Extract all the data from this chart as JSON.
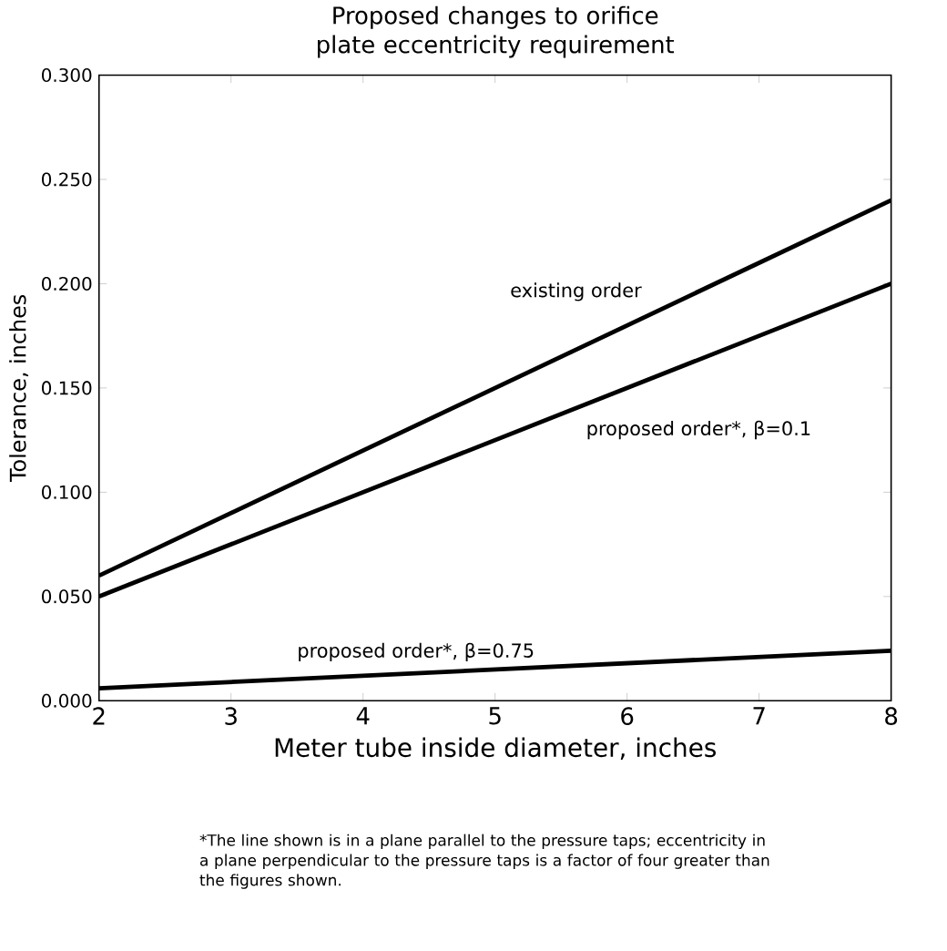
{
  "chart_data": {
    "type": "line",
    "title": "Proposed changes to orifice plate eccentricity requirement",
    "xlabel": "Meter tube inside diameter, inches",
    "ylabel": "Tolerance, inches",
    "x": [
      2,
      8
    ],
    "series": [
      {
        "name": "existing order",
        "color": "#000000",
        "values": [
          0.06,
          0.24
        ]
      },
      {
        "name": "proposed order*, β=0.1",
        "color": "#000000",
        "values": [
          0.05,
          0.2
        ]
      },
      {
        "name": "proposed order*, β=0.75",
        "color": "#000000",
        "values": [
          0.006,
          0.024
        ]
      }
    ],
    "xlim": [
      2,
      8
    ],
    "xticks": [
      2,
      3,
      4,
      5,
      6,
      7,
      8
    ],
    "ylim": [
      0,
      0.3
    ],
    "yticks": [
      {
        "value": 0,
        "label": "0.000"
      },
      {
        "value": 0.05,
        "label": "0.050"
      },
      {
        "value": 0.1,
        "label": "0.100"
      },
      {
        "value": 0.15,
        "label": "0.150"
      },
      {
        "value": 0.2,
        "label": "0.200"
      },
      {
        "value": 0.25,
        "label": "0.250"
      },
      {
        "value": 0.3,
        "label": "0.300"
      }
    ],
    "grid": false,
    "marker": "none",
    "line_style": "solid",
    "annotations": [
      "*The line shown is in a plane parallel to the pressure taps; eccentricity in a plane perpendicular to the pressure taps is a factor of four greater than the figures shown."
    ]
  }
}
